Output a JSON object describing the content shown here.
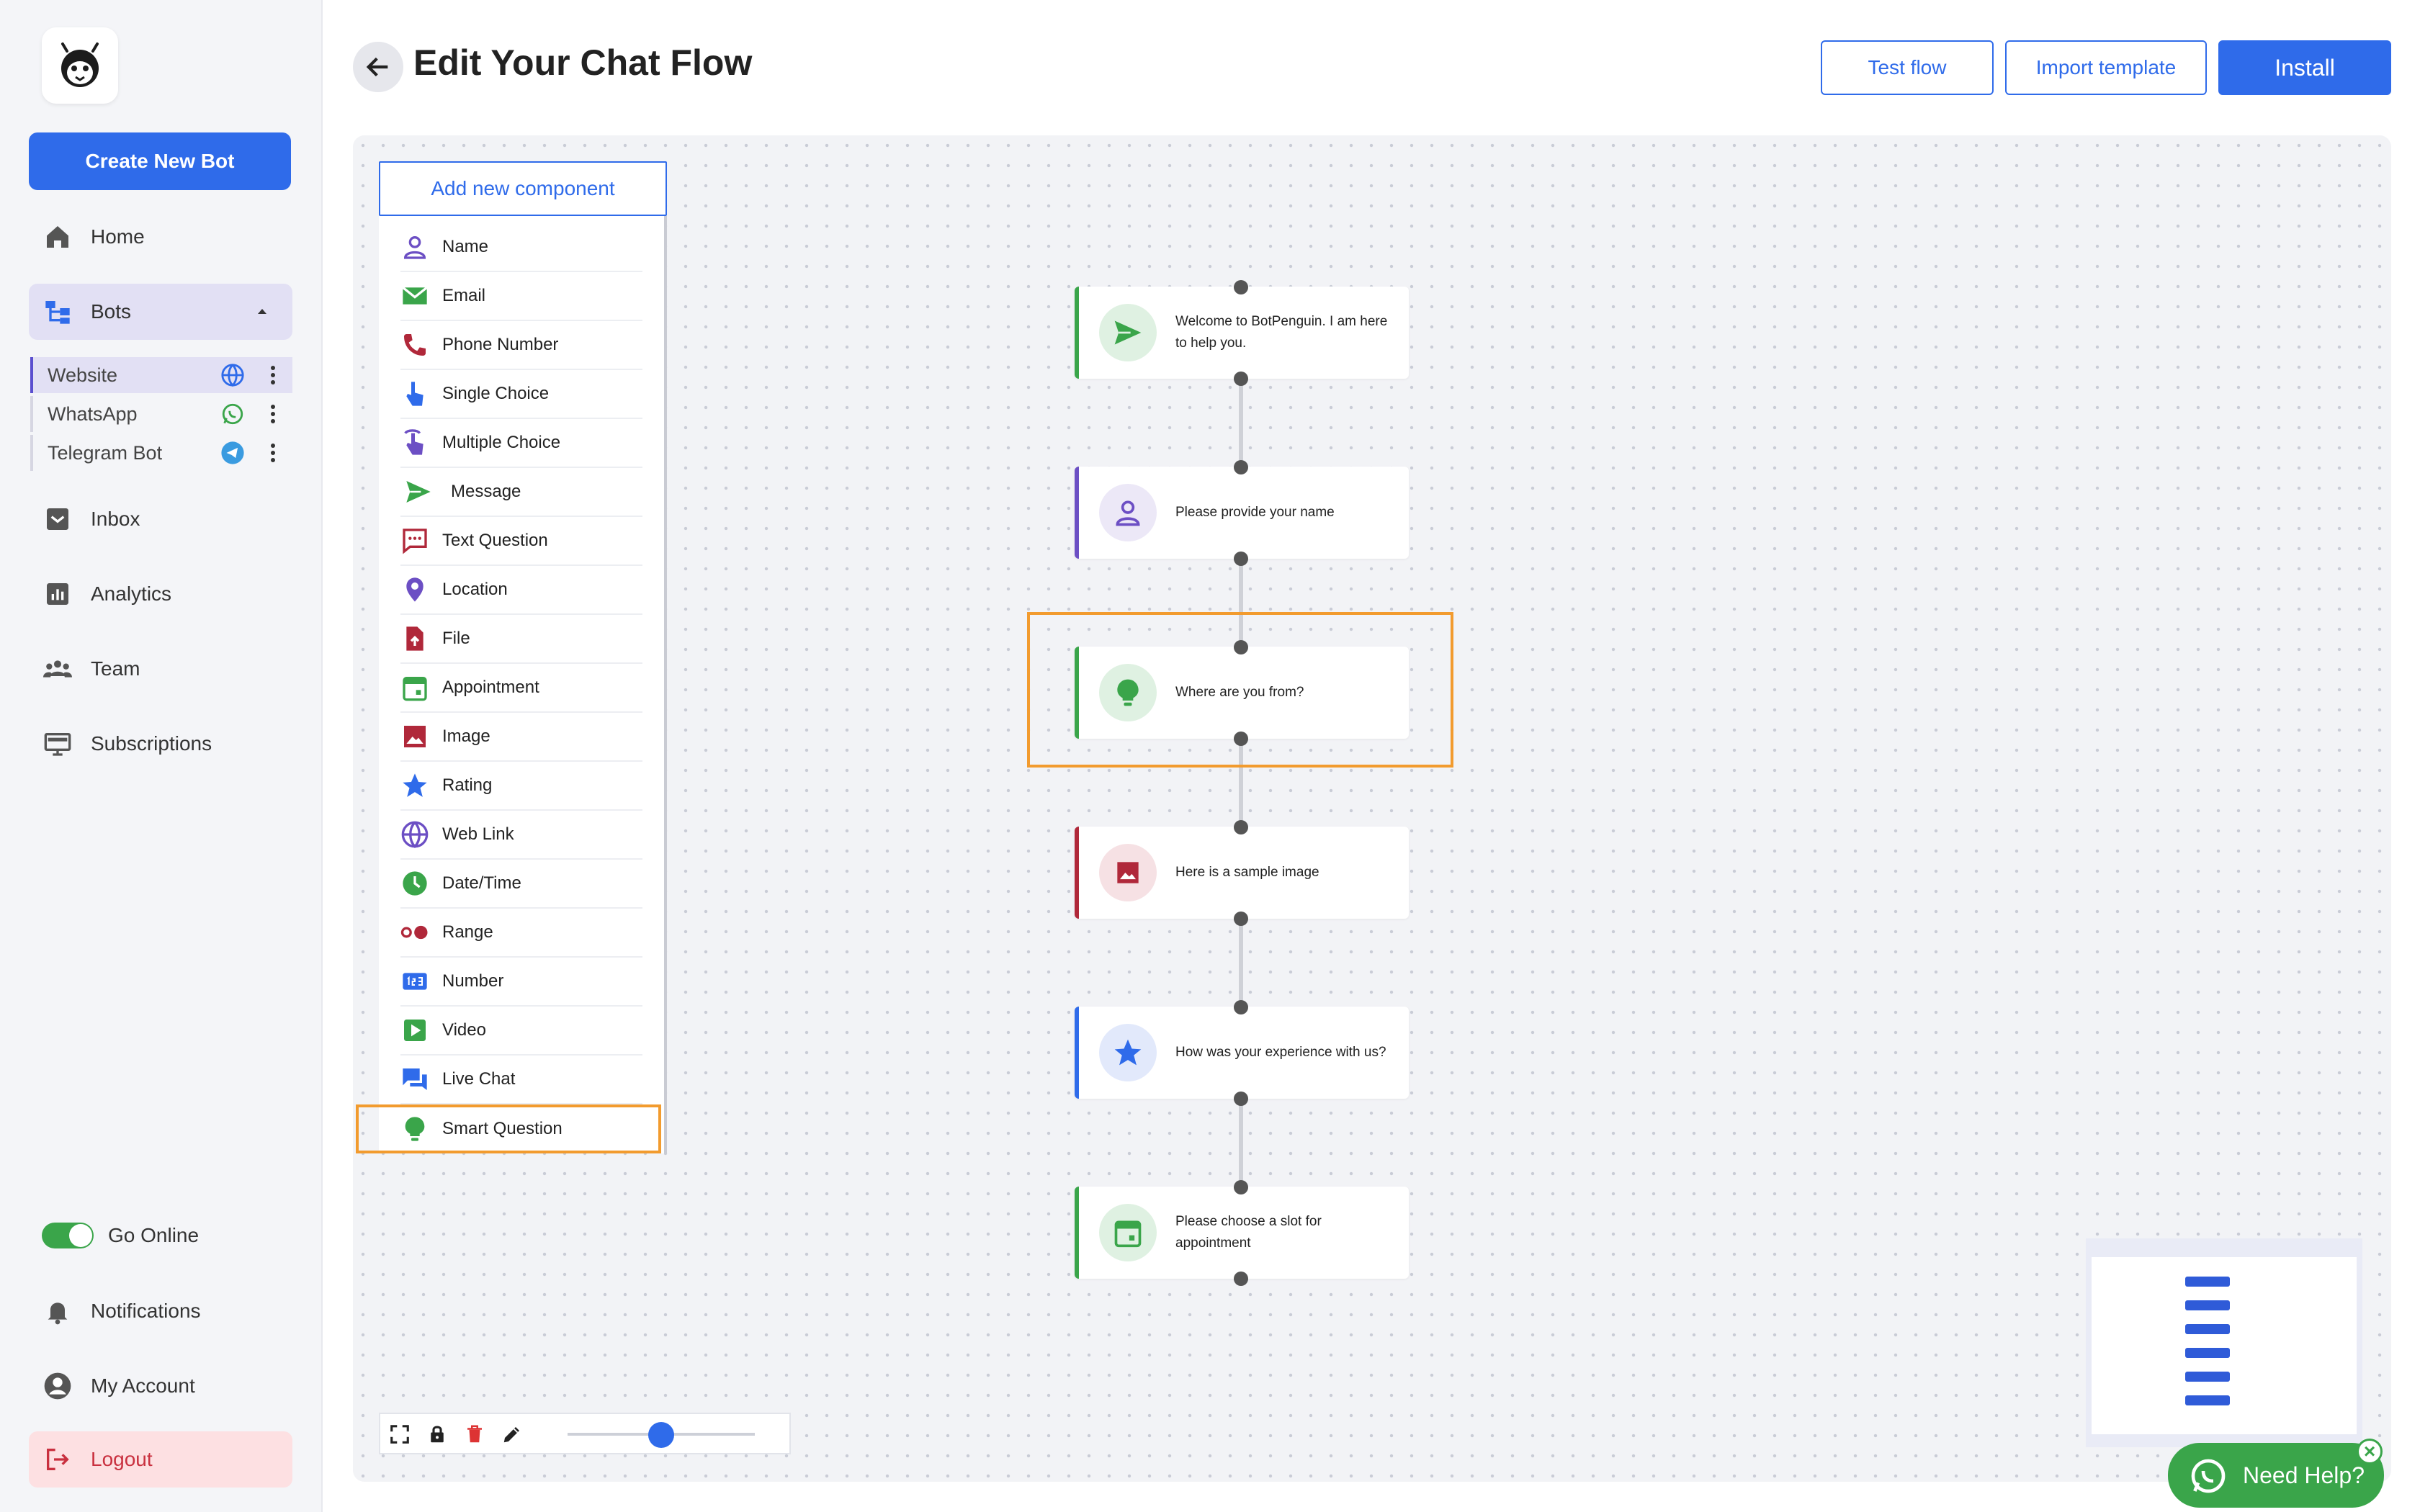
{
  "header": {
    "title": "Edit Your Chat Flow",
    "test_flow": "Test flow",
    "import_template": "Import template",
    "install": "Install"
  },
  "sidebar": {
    "create_bot": "Create New Bot",
    "nav": [
      {
        "label": "Home",
        "icon": "home-icon"
      },
      {
        "label": "Bots",
        "icon": "bots-icon"
      },
      {
        "label": "Inbox",
        "icon": "inbox-icon"
      },
      {
        "label": "Analytics",
        "icon": "analytics-icon"
      },
      {
        "label": "Team",
        "icon": "team-icon"
      },
      {
        "label": "Subscriptions",
        "icon": "subscriptions-icon"
      }
    ],
    "bots": [
      {
        "label": "Website",
        "icon": "globe-icon"
      },
      {
        "label": "WhatsApp",
        "icon": "whatsapp-icon"
      },
      {
        "label": "Telegram Bot",
        "icon": "telegram-icon"
      }
    ],
    "go_online": "Go Online",
    "go_online_enabled": true,
    "notifications": "Notifications",
    "my_account": "My Account",
    "logout": "Logout"
  },
  "palette": {
    "add_button": "Add new component",
    "items": [
      {
        "label": "Name",
        "icon": "person-icon",
        "color": "#6c4fc4"
      },
      {
        "label": "Email",
        "icon": "email-icon",
        "color": "#3aa54a"
      },
      {
        "label": "Phone Number",
        "icon": "phone-icon",
        "color": "#b0283a"
      },
      {
        "label": "Single Choice",
        "icon": "single-choice-icon",
        "color": "#2f6bea"
      },
      {
        "label": "Multiple Choice",
        "icon": "multiple-choice-icon",
        "color": "#6c4fc4"
      },
      {
        "label": "Message",
        "icon": "send-icon",
        "color": "#3aa54a"
      },
      {
        "label": "Text Question",
        "icon": "text-question-icon",
        "color": "#b0283a"
      },
      {
        "label": "Location",
        "icon": "location-icon",
        "color": "#6c4fc4"
      },
      {
        "label": "File",
        "icon": "file-icon",
        "color": "#b0283a"
      },
      {
        "label": "Appointment",
        "icon": "calendar-icon",
        "color": "#3aa54a"
      },
      {
        "label": "Image",
        "icon": "image-icon",
        "color": "#b0283a"
      },
      {
        "label": "Rating",
        "icon": "star-icon",
        "color": "#2f6bea"
      },
      {
        "label": "Web Link",
        "icon": "globe-icon",
        "color": "#6c4fc4"
      },
      {
        "label": "Date/Time",
        "icon": "clock-icon",
        "color": "#3aa54a"
      },
      {
        "label": "Range",
        "icon": "range-icon",
        "color": "#b0283a"
      },
      {
        "label": "Number",
        "icon": "number-icon",
        "color": "#2f6bea"
      },
      {
        "label": "Video",
        "icon": "video-icon",
        "color": "#3aa54a"
      },
      {
        "label": "Live Chat",
        "icon": "live-chat-icon",
        "color": "#2f6bea"
      },
      {
        "label": "Smart Question",
        "icon": "bulb-icon",
        "color": "#3aa54a"
      }
    ],
    "highlighted": "Smart Question"
  },
  "flow": {
    "nodes": [
      {
        "text": "Welcome to BotPenguin. I am here to help you.",
        "icon": "send-icon",
        "accent": "#3aa54a"
      },
      {
        "text": "Please provide your name",
        "icon": "person-icon",
        "accent": "#6c4fc4"
      },
      {
        "text": "Where are you from?",
        "icon": "bulb-icon",
        "accent": "#3aa54a"
      },
      {
        "text": "Here is a sample image",
        "icon": "image-icon",
        "accent": "#b0283a"
      },
      {
        "text": "How was your experience with us?",
        "icon": "star-icon",
        "accent": "#2f6bea"
      },
      {
        "text": "Please choose a slot for appointment",
        "icon": "calendar-icon",
        "accent": "#3aa54a"
      }
    ],
    "highlighted": "Where are you from?"
  },
  "toolbar": {
    "icons": [
      "fullscreen-icon",
      "lock-icon",
      "trash-icon",
      "pen-icon"
    ],
    "zoom_level": 0.5
  },
  "help": {
    "label": "Need Help?"
  },
  "colors": {
    "primary": "#2f6bea",
    "green": "#3aa54a",
    "purple": "#6c4fc4",
    "red": "#b0283a",
    "highlight": "#f29b2e"
  }
}
